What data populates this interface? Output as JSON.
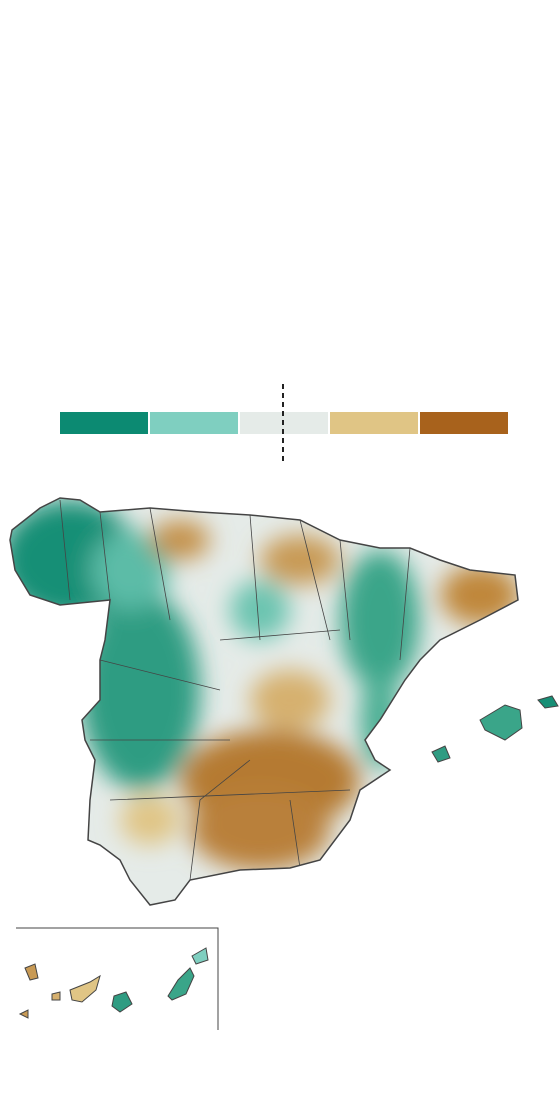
{
  "legend": {
    "colors": [
      "#0c8a72",
      "#7fcfc0",
      "#e5ebe8",
      "#e0c585",
      "#a8621c"
    ]
  }
}
